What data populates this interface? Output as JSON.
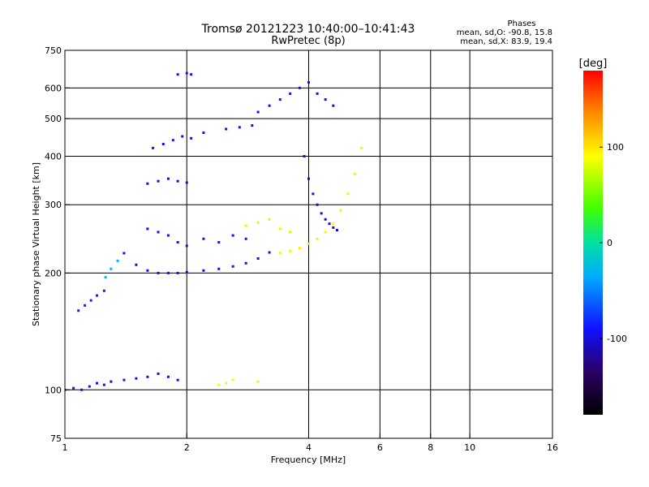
{
  "chart_data": {
    "type": "scatter",
    "title": "Tromsø 20121223 10:40:00–10:41:43",
    "subtitle": "RwPretec (8p)",
    "stats_header": "Phases",
    "stats_line_o": "mean, sd,O: -90.8, 15.8",
    "stats_line_x": "mean, sd,X: 83.9, 19.4",
    "xlabel": "Frequency [MHz]",
    "ylabel": "Stationary phase Virtual Height [km]",
    "x_scale": "log",
    "y_scale": "log",
    "xlim": [
      1,
      16
    ],
    "ylim": [
      75,
      750
    ],
    "x_ticks": [
      {
        "value": 1,
        "label": "1"
      },
      {
        "value": 2,
        "label": "2"
      },
      {
        "value": 4,
        "label": "4"
      },
      {
        "value": 6,
        "label": "6"
      },
      {
        "value": 8,
        "label": "8"
      },
      {
        "value": 10,
        "label": "10"
      },
      {
        "value": 16,
        "label": "16"
      }
    ],
    "y_ticks": [
      {
        "value": 75,
        "label": "75"
      },
      {
        "value": 100,
        "label": "100"
      },
      {
        "value": 200,
        "label": "200"
      },
      {
        "value": 300,
        "label": "300"
      },
      {
        "value": 400,
        "label": "400"
      },
      {
        "value": 500,
        "label": "500"
      },
      {
        "value": 600,
        "label": "600"
      },
      {
        "value": 750,
        "label": "750"
      }
    ],
    "x_grid": [
      2,
      4,
      6,
      8,
      10
    ],
    "y_grid": [
      100,
      200,
      300,
      400,
      500,
      600
    ],
    "grid": true,
    "colorbar": {
      "label": "[deg]",
      "range": [
        -180,
        180
      ],
      "ticks": [
        {
          "value": 100,
          "label": "100"
        },
        {
          "value": 0,
          "label": "0"
        },
        {
          "value": -100,
          "label": "-100"
        }
      ],
      "colormap": "rainbow"
    },
    "point_color_min": "#000000",
    "point_color_max": "#ff0000",
    "series": [
      {
        "x": [
          1.0,
          1.05,
          1.1,
          1.15,
          1.2,
          1.25,
          1.3,
          1.4,
          1.5,
          1.6,
          1.7,
          1.8,
          1.9
        ],
        "y": [
          100,
          101,
          100,
          102,
          104,
          103,
          105,
          106,
          107,
          108,
          110,
          108,
          106
        ],
        "phase": -100
      },
      {
        "x": [
          1.08,
          1.12,
          1.16,
          1.2,
          1.25
        ],
        "y": [
          160,
          165,
          170,
          175,
          180
        ],
        "phase": -95
      },
      {
        "x": [
          1.26,
          1.3,
          1.35
        ],
        "y": [
          195,
          205,
          215
        ],
        "phase": -30
      },
      {
        "x": [
          1.4,
          1.5,
          1.6,
          1.7,
          1.8,
          1.9,
          2.0,
          2.2,
          2.4,
          2.6,
          2.8,
          3.0,
          3.2
        ],
        "y": [
          225,
          210,
          203,
          200,
          200,
          200,
          201,
          203,
          205,
          208,
          212,
          218,
          226
        ],
        "phase": -105
      },
      {
        "x": [
          1.6,
          1.7,
          1.8,
          1.9,
          2.0,
          2.2,
          2.4,
          2.6,
          2.8
        ],
        "y": [
          260,
          255,
          250,
          240,
          235,
          245,
          240,
          250,
          245
        ],
        "phase": -100
      },
      {
        "x": [
          1.6,
          1.7,
          1.8,
          1.9,
          2.0
        ],
        "y": [
          340,
          345,
          350,
          345,
          342
        ],
        "phase": -110
      },
      {
        "x": [
          1.65,
          1.75,
          1.85,
          1.95,
          2.05,
          2.2,
          2.5,
          2.7,
          2.9
        ],
        "y": [
          420,
          430,
          440,
          450,
          445,
          460,
          470,
          475,
          480
        ],
        "phase": -105
      },
      {
        "x": [
          1.9,
          2.0,
          2.05
        ],
        "y": [
          650,
          655,
          650
        ],
        "phase": -100
      },
      {
        "x": [
          3.0,
          3.2,
          3.4,
          3.6,
          3.8,
          4.0,
          4.2,
          4.4,
          4.6
        ],
        "y": [
          520,
          540,
          560,
          580,
          600,
          620,
          580,
          560,
          540
        ],
        "phase": -105
      },
      {
        "x": [
          3.9,
          4.0,
          4.1,
          4.2,
          4.3,
          4.4,
          4.5,
          4.6,
          4.7
        ],
        "y": [
          400,
          350,
          320,
          300,
          285,
          275,
          268,
          262,
          258
        ],
        "phase": -110
      },
      {
        "x": [
          3.4,
          3.6,
          3.8,
          4.0,
          4.2,
          4.4,
          4.6,
          4.8,
          5.0,
          5.2,
          5.4
        ],
        "y": [
          225,
          228,
          232,
          238,
          245,
          255,
          268,
          290,
          320,
          360,
          420
        ],
        "phase": 95
      },
      {
        "x": [
          2.8,
          3.0,
          3.2,
          3.4,
          3.6
        ],
        "y": [
          265,
          270,
          275,
          260,
          255
        ],
        "phase": 80
      },
      {
        "x": [
          2.4,
          2.5,
          2.6,
          3.0
        ],
        "y": [
          103,
          104,
          106,
          105
        ],
        "phase": 85
      }
    ]
  }
}
